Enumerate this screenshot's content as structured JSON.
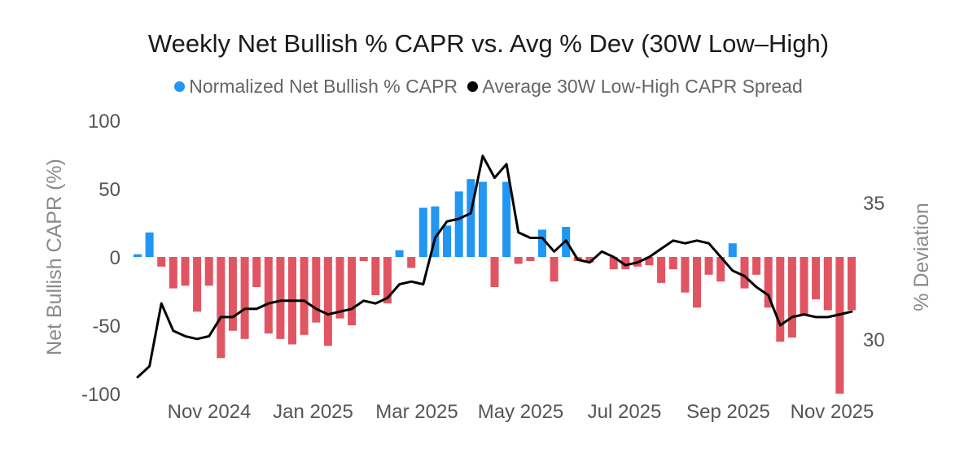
{
  "chart_data": {
    "type": "bar+line",
    "title": "Weekly Net Bullish % CAPR vs. Avg % Dev (30W Low–High)",
    "legend": [
      {
        "label": "Normalized Net Bullish % CAPR",
        "color": "#2196F3"
      },
      {
        "label": "Average 30W Low-High CAPR Spread",
        "color": "#000000"
      }
    ],
    "ylabel": "Net Bullish CAPR (%)",
    "y2label": "% Deviation",
    "ylim": [
      -100,
      100
    ],
    "y2lim": [
      28,
      38
    ],
    "y_ticks": [
      "100",
      "50",
      "0",
      "-50",
      "-100"
    ],
    "y2_ticks": [
      "35",
      "30"
    ],
    "x_ticks": [
      "Nov 2024",
      "Jan 2025",
      "Mar 2025",
      "May 2025",
      "Jul 2025",
      "Sep 2025",
      "Nov 2025"
    ],
    "positive_color": "#2196F3",
    "negative_color": "#E05561",
    "line_color": "#000000",
    "bar_values": [
      2,
      18,
      -7,
      -23,
      -21,
      -40,
      -21,
      -74,
      -54,
      -60,
      -22,
      -56,
      -60,
      -64,
      -57,
      -48,
      -65,
      -45,
      -50,
      -3,
      -28,
      -34,
      5,
      -8,
      36,
      37,
      23,
      48,
      57,
      55,
      -22,
      55,
      -5,
      -3,
      20,
      -18,
      22,
      -3,
      -4,
      0,
      -9,
      -9,
      -7,
      -6,
      -19,
      -9,
      -26,
      -37,
      -13,
      -18,
      10,
      -23,
      -13,
      -37,
      -62,
      -59,
      -43,
      -31,
      -39,
      -100,
      -39
    ],
    "line_values": [
      28.6,
      29.0,
      31.3,
      30.3,
      30.1,
      30.0,
      30.1,
      30.8,
      30.8,
      31.1,
      31.1,
      31.3,
      31.4,
      31.4,
      31.4,
      31.1,
      30.9,
      31.0,
      31.1,
      31.4,
      31.3,
      31.5,
      32.0,
      32.1,
      32.0,
      33.7,
      34.3,
      34.4,
      34.6,
      36.7,
      35.9,
      36.4,
      33.9,
      33.7,
      33.7,
      33.2,
      33.6,
      32.9,
      32.8,
      33.2,
      33.0,
      32.7,
      32.8,
      33.0,
      33.3,
      33.6,
      33.5,
      33.6,
      33.5,
      33.0,
      32.5,
      32.3,
      31.9,
      31.6,
      30.5,
      30.8,
      30.9,
      30.8,
      30.8,
      30.9,
      31.0
    ]
  }
}
